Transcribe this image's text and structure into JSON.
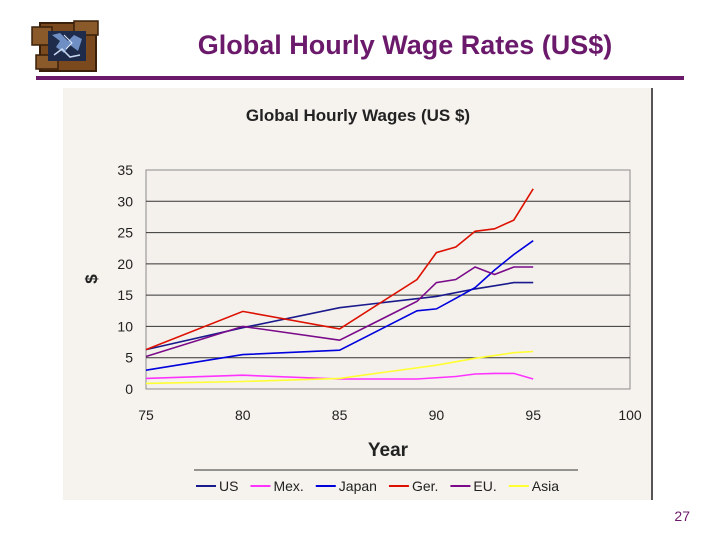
{
  "slide": {
    "title": "Global Hourly Wage Rates (US$)",
    "page_number": "27"
  },
  "colors": {
    "title": "#6b1a6b",
    "US": "#1a1a8c",
    "Mex.": "#ff33ff",
    "Japan": "#0000dd",
    "Ger.": "#dd1100",
    "EU.": "#7a0a8a",
    "Asia": "#ffff33"
  },
  "chart_data": {
    "type": "line",
    "title": "Global Hourly Wages (US $)",
    "xlabel": "Year",
    "ylabel": "$",
    "xlim": [
      75,
      100
    ],
    "ylim": [
      0,
      35
    ],
    "xticks": [
      75,
      80,
      85,
      90,
      95,
      100
    ],
    "yticks": [
      0,
      5,
      10,
      15,
      20,
      25,
      30,
      35
    ],
    "grid": "horizontal",
    "legend_position": "bottom",
    "series": [
      {
        "name": "US",
        "x": [
          75,
          80,
          85,
          90,
          92,
          93,
          94,
          95
        ],
        "values": [
          6.3,
          9.8,
          13,
          14.8,
          16,
          16.5,
          17,
          17
        ]
      },
      {
        "name": "Mex.",
        "x": [
          75,
          80,
          85,
          89,
          91,
          92,
          93,
          94,
          95
        ],
        "values": [
          1.7,
          2.2,
          1.6,
          1.6,
          2,
          2.4,
          2.5,
          2.5,
          1.6
        ]
      },
      {
        "name": "Japan",
        "x": [
          75,
          80,
          85,
          89,
          90,
          91,
          92,
          93,
          94,
          95
        ],
        "values": [
          3,
          5.5,
          6.2,
          12.5,
          12.8,
          14.5,
          16.2,
          19,
          21.5,
          23.7
        ]
      },
      {
        "name": "Ger.",
        "x": [
          75,
          80,
          85,
          89,
          90,
          91,
          92,
          93,
          94,
          95
        ],
        "values": [
          6.3,
          12.4,
          9.6,
          17.5,
          21.8,
          22.7,
          25.2,
          25.6,
          27,
          32
        ]
      },
      {
        "name": "EU.",
        "x": [
          75,
          80,
          85,
          89,
          90,
          91,
          92,
          93,
          94,
          95
        ],
        "values": [
          5.2,
          10,
          7.8,
          14,
          17,
          17.5,
          19.5,
          18.3,
          19.5,
          19.5
        ]
      },
      {
        "name": "Asia",
        "x": [
          75,
          80,
          85,
          90,
          92,
          94,
          95
        ],
        "values": [
          0.9,
          1.2,
          1.7,
          3.8,
          4.9,
          5.8,
          6
        ]
      }
    ]
  }
}
